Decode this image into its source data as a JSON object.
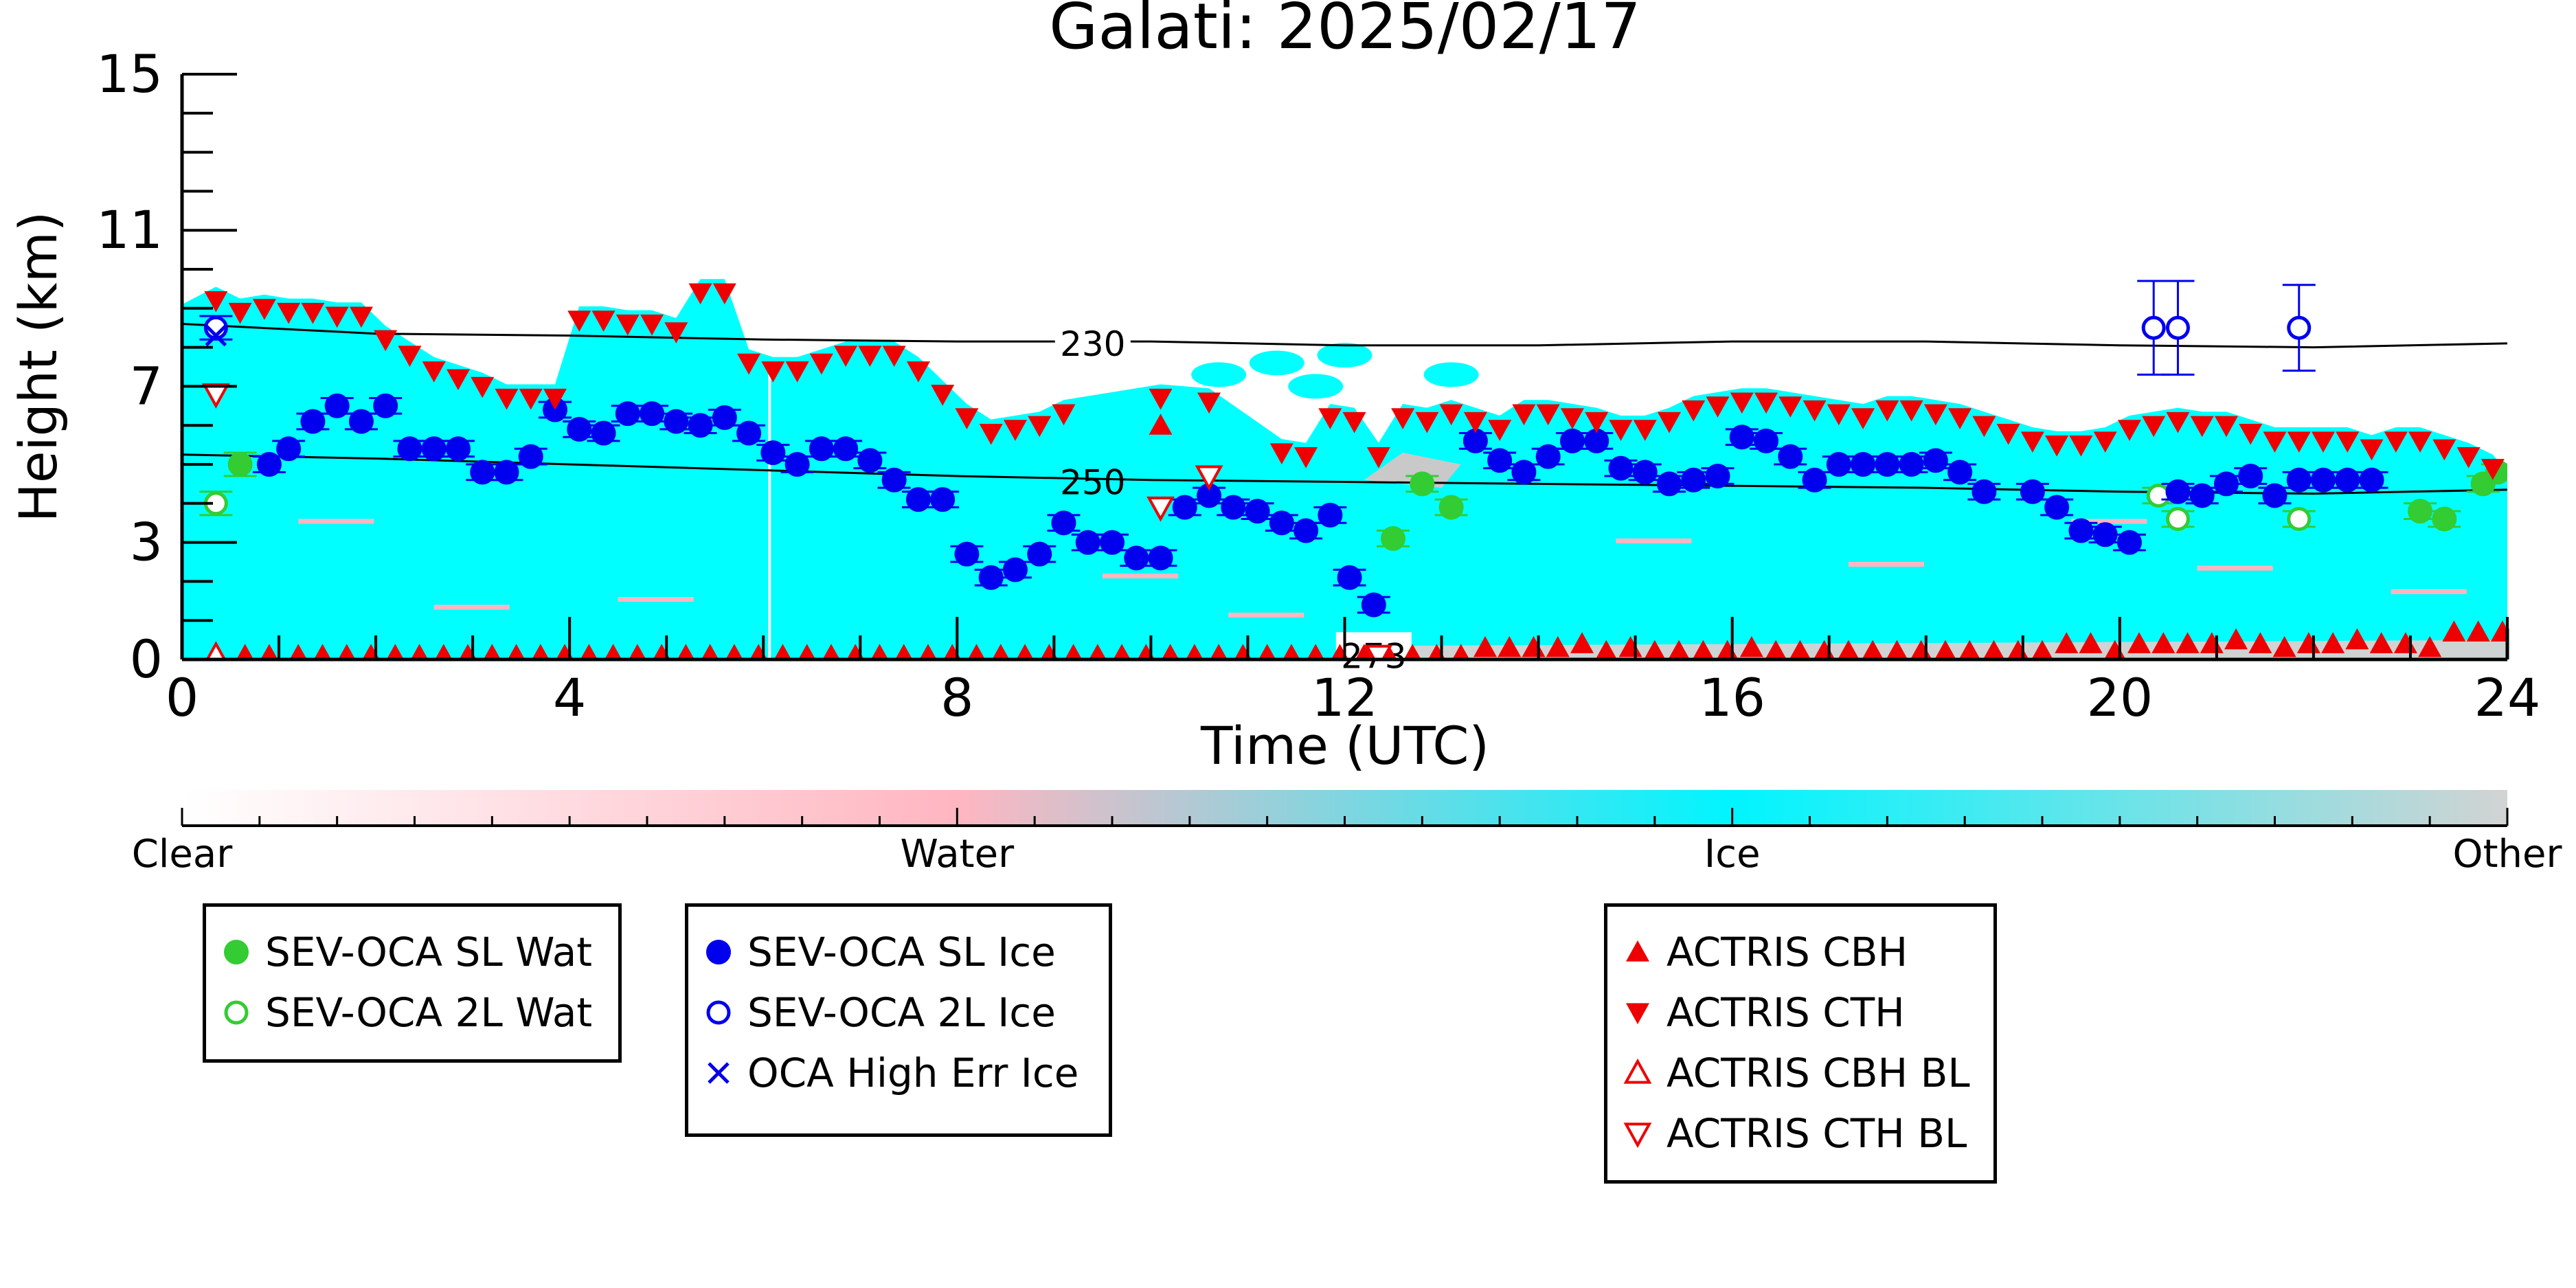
{
  "chart_data": {
    "type": "scatter",
    "title": "Galati: 2025/02/17",
    "xlabel": "Time (UTC)",
    "ylabel": "Height (km)",
    "xlim": [
      0,
      24
    ],
    "ylim": [
      0,
      15
    ],
    "xticks": [
      0,
      4,
      8,
      12,
      16,
      20,
      24
    ],
    "yticks": [
      0,
      3,
      7,
      11,
      15
    ],
    "isotherms": [
      {
        "label": "230",
        "x": [
          0,
          2,
          4,
          6,
          8,
          10,
          12,
          14,
          16,
          18,
          20,
          22,
          24
        ],
        "y": [
          8.6,
          8.35,
          8.3,
          8.2,
          8.15,
          8.15,
          8.05,
          8.05,
          8.15,
          8.15,
          8.05,
          8.0,
          8.1
        ]
      },
      {
        "label": "250",
        "x": [
          0,
          2,
          4,
          6,
          8,
          10,
          12,
          14,
          16,
          18,
          20,
          22,
          24
        ],
        "y": [
          5.25,
          5.15,
          5.0,
          4.85,
          4.7,
          4.6,
          4.55,
          4.5,
          4.45,
          4.4,
          4.3,
          4.25,
          4.35
        ]
      },
      {
        "label": "273",
        "x": [
          12.0,
          12.6
        ],
        "y": [
          0.1,
          0.1
        ]
      }
    ],
    "colorbar": {
      "labels": [
        "Clear",
        "Water",
        "Ice",
        "Other"
      ],
      "colors": [
        "#ffffff",
        "#ffb6c1",
        "#00ffff",
        "#d3d3d3"
      ]
    },
    "series": [
      {
        "name": "SEV-OCA SL Wat",
        "color": "#33cc33",
        "marker": "filled-circle",
        "x": [
          0.6,
          12.5,
          12.8,
          13.1,
          23.1,
          23.35,
          23.75,
          23.9
        ],
        "y": [
          5.0,
          3.1,
          4.5,
          3.9,
          3.8,
          3.6,
          4.5,
          4.8
        ],
        "err": [
          0.3,
          0.2,
          0.2,
          0.2,
          0.2,
          0.2,
          0.2,
          0.2
        ]
      },
      {
        "name": "SEV-OCA 2L Wat",
        "color": "#33cc33",
        "marker": "open-circle",
        "x": [
          0.35,
          20.4,
          20.6,
          21.85
        ],
        "y": [
          4.0,
          4.2,
          3.6,
          3.6
        ],
        "err": [
          0.3,
          0.2,
          0.2,
          0.2
        ]
      },
      {
        "name": "SEV-OCA SL Ice",
        "color": "#0000ee",
        "marker": "filled-circle",
        "x": [
          0.9,
          1.1,
          1.35,
          1.6,
          1.85,
          2.1,
          2.35,
          2.6,
          2.85,
          3.1,
          3.35,
          3.6,
          3.85,
          4.1,
          4.35,
          4.6,
          4.85,
          5.1,
          5.35,
          5.6,
          5.85,
          6.1,
          6.35,
          6.6,
          6.85,
          7.1,
          7.35,
          7.6,
          7.85,
          8.1,
          8.35,
          8.6,
          8.85,
          9.1,
          9.35,
          9.6,
          9.85,
          10.1,
          10.35,
          10.6,
          10.85,
          11.1,
          11.35,
          11.6,
          11.85,
          12.05,
          12.3,
          13.35,
          13.6,
          13.85,
          14.1,
          14.35,
          14.6,
          14.85,
          15.1,
          15.35,
          15.6,
          15.85,
          16.1,
          16.35,
          16.6,
          16.85,
          17.1,
          17.35,
          17.6,
          17.85,
          18.1,
          18.35,
          18.6,
          19.1,
          19.35,
          19.6,
          19.85,
          20.1,
          20.6,
          20.85,
          21.1,
          21.35,
          21.6,
          21.85,
          22.1,
          22.35,
          22.6
        ],
        "y": [
          5.0,
          5.4,
          6.1,
          6.5,
          6.1,
          6.5,
          5.4,
          5.4,
          5.4,
          4.8,
          4.8,
          5.2,
          6.4,
          5.9,
          5.8,
          6.3,
          6.3,
          6.1,
          6.0,
          6.2,
          5.8,
          5.3,
          5.0,
          5.4,
          5.4,
          5.1,
          4.6,
          4.1,
          4.1,
          2.7,
          2.1,
          2.3,
          2.7,
          3.5,
          3.0,
          3.0,
          2.6,
          2.6,
          3.9,
          4.2,
          3.9,
          3.8,
          3.5,
          3.3,
          3.7,
          2.1,
          1.4,
          5.6,
          5.1,
          4.8,
          5.2,
          5.6,
          5.6,
          4.9,
          4.8,
          4.5,
          4.6,
          4.7,
          5.7,
          5.6,
          5.2,
          4.6,
          5.0,
          5.0,
          5.0,
          5.0,
          5.1,
          4.8,
          4.3,
          4.3,
          3.9,
          3.3,
          3.2,
          3.0,
          4.3,
          4.2,
          4.5,
          4.7,
          4.2,
          4.6,
          4.6,
          4.6,
          4.6
        ],
        "err": [
          0.2,
          0.2,
          0.2,
          0.2,
          0.2,
          0.2,
          0.2,
          0.2,
          0.2,
          0.2,
          0.2,
          0.2,
          0.2,
          0.2,
          0.2,
          0.2,
          0.2,
          0.2,
          0.2,
          0.2,
          0.2,
          0.2,
          0.2,
          0.2,
          0.2,
          0.2,
          0.2,
          0.2,
          0.2,
          0.2,
          0.2,
          0.2,
          0.2,
          0.2,
          0.2,
          0.2,
          0.2,
          0.2,
          0.2,
          0.2,
          0.2,
          0.2,
          0.2,
          0.2,
          0.2,
          0.2,
          0.2,
          0.2,
          0.2,
          0.2,
          0.2,
          0.2,
          0.2,
          0.2,
          0.2,
          0.2,
          0.2,
          0.2,
          0.2,
          0.2,
          0.2,
          0.2,
          0.2,
          0.2,
          0.2,
          0.2,
          0.2,
          0.2,
          0.2,
          0.2,
          0.2,
          0.2,
          0.2,
          0.2,
          0.2,
          0.2,
          0.2,
          0.2,
          0.2,
          0.2,
          0.2,
          0.2,
          0.2
        ]
      },
      {
        "name": "SEV-OCA 2L Ice",
        "color": "#0000ee",
        "marker": "open-circle",
        "x": [
          0.35,
          20.35,
          20.6,
          21.85
        ],
        "y": [
          8.5,
          8.5,
          8.5,
          8.5
        ],
        "err": [
          0.3,
          1.2,
          1.2,
          1.1
        ]
      },
      {
        "name": "OCA High Err Ice",
        "color": "#0000ee",
        "marker": "x",
        "x": [
          0.35
        ],
        "y": [
          8.3
        ]
      },
      {
        "name": "ACTRIS CBH",
        "color": "#ee0000",
        "marker": "triangle-up",
        "x": [
          0.35,
          0.65,
          0.9,
          1.2,
          1.45,
          1.7,
          1.95,
          2.2,
          2.45,
          2.7,
          2.95,
          3.2,
          3.45,
          3.7,
          3.95,
          4.2,
          4.45,
          4.7,
          4.95,
          5.2,
          5.45,
          5.7,
          5.95,
          6.2,
          6.45,
          6.7,
          6.95,
          7.2,
          7.45,
          7.7,
          7.95,
          8.2,
          8.45,
          8.7,
          8.95,
          9.2,
          9.45,
          9.7,
          9.95,
          10.2,
          10.45,
          10.7,
          10.95,
          11.2,
          11.45,
          11.7,
          11.95,
          12.2,
          12.45,
          12.7,
          12.95,
          13.2,
          13.45,
          13.7,
          13.95,
          14.2,
          14.45,
          14.7,
          14.95,
          15.2,
          15.45,
          15.7,
          15.95,
          16.2,
          16.45,
          16.7,
          16.95,
          17.2,
          17.45,
          17.7,
          17.95,
          18.2,
          18.45,
          18.7,
          18.95,
          19.2,
          19.45,
          19.7,
          19.95,
          20.2,
          20.45,
          20.7,
          20.95,
          21.2,
          21.45,
          21.7,
          21.95,
          22.2,
          22.45,
          22.7,
          22.95,
          23.2,
          23.45,
          23.7,
          23.95,
          10.1
        ],
        "y": [
          0.1,
          0.1,
          0.1,
          0.1,
          0.1,
          0.1,
          0.1,
          0.1,
          0.1,
          0.1,
          0.1,
          0.1,
          0.1,
          0.1,
          0.1,
          0.1,
          0.1,
          0.1,
          0.1,
          0.1,
          0.1,
          0.1,
          0.1,
          0.1,
          0.1,
          0.1,
          0.1,
          0.1,
          0.1,
          0.1,
          0.1,
          0.1,
          0.1,
          0.1,
          0.1,
          0.1,
          0.1,
          0.1,
          0.1,
          0.1,
          0.1,
          0.1,
          0.1,
          0.1,
          0.1,
          0.1,
          0.1,
          0.1,
          0.1,
          0.1,
          0.1,
          0.1,
          0.3,
          0.3,
          0.3,
          0.3,
          0.4,
          0.2,
          0.3,
          0.2,
          0.2,
          0.2,
          0.2,
          0.3,
          0.2,
          0.2,
          0.2,
          0.2,
          0.2,
          0.2,
          0.2,
          0.2,
          0.2,
          0.2,
          0.2,
          0.2,
          0.4,
          0.4,
          0.2,
          0.4,
          0.4,
          0.4,
          0.4,
          0.5,
          0.4,
          0.3,
          0.4,
          0.4,
          0.5,
          0.4,
          0.4,
          0.3,
          0.7,
          0.7,
          0.7,
          6.0
        ]
      },
      {
        "name": "ACTRIS CTH",
        "color": "#ee0000",
        "marker": "triangle-down",
        "x": [
          0.35,
          0.6,
          0.85,
          1.1,
          1.35,
          1.6,
          1.85,
          2.1,
          2.35,
          2.6,
          2.85,
          3.1,
          3.35,
          3.6,
          3.85,
          4.1,
          4.35,
          4.6,
          4.85,
          5.1,
          5.35,
          5.6,
          5.85,
          6.1,
          6.35,
          6.6,
          6.85,
          7.1,
          7.35,
          7.6,
          7.85,
          8.1,
          8.35,
          8.6,
          8.85,
          9.1,
          10.1,
          10.6,
          11.35,
          11.6,
          11.85,
          12.1,
          12.35,
          12.6,
          12.85,
          13.1,
          13.35,
          13.6,
          13.85,
          14.1,
          14.35,
          14.6,
          14.85,
          15.1,
          15.35,
          15.6,
          15.85,
          16.1,
          16.35,
          16.6,
          16.85,
          17.1,
          17.35,
          17.6,
          17.85,
          18.1,
          18.35,
          18.6,
          18.85,
          19.1,
          19.35,
          19.6,
          19.85,
          20.1,
          20.35,
          20.6,
          20.85,
          21.1,
          21.35,
          21.6,
          21.85,
          22.1,
          22.35,
          22.6,
          22.85,
          23.1,
          23.35,
          23.6,
          23.85
        ],
        "y": [
          9.2,
          8.9,
          9.0,
          8.9,
          8.9,
          8.8,
          8.8,
          8.2,
          7.8,
          7.4,
          7.2,
          7.0,
          6.7,
          6.7,
          6.7,
          8.7,
          8.7,
          8.6,
          8.6,
          8.4,
          9.4,
          9.4,
          7.6,
          7.4,
          7.4,
          7.6,
          7.8,
          7.8,
          7.8,
          7.4,
          6.8,
          6.2,
          5.8,
          5.9,
          6.0,
          6.3,
          6.7,
          6.6,
          5.3,
          5.2,
          6.2,
          6.1,
          5.2,
          6.2,
          6.1,
          6.3,
          6.1,
          5.9,
          6.3,
          6.3,
          6.2,
          6.1,
          5.9,
          5.9,
          6.1,
          6.4,
          6.5,
          6.6,
          6.6,
          6.5,
          6.4,
          6.3,
          6.2,
          6.4,
          6.4,
          6.3,
          6.2,
          6.0,
          5.8,
          5.6,
          5.5,
          5.5,
          5.6,
          5.9,
          6.0,
          6.1,
          6.0,
          6.0,
          5.8,
          5.6,
          5.6,
          5.6,
          5.6,
          5.4,
          5.6,
          5.6,
          5.4,
          5.2,
          4.9
        ]
      },
      {
        "name": "ACTRIS CBH BL",
        "color": "#ee0000",
        "marker": "open-triangle-up",
        "x": [
          0.35
        ],
        "y": [
          0.1
        ]
      },
      {
        "name": "ACTRIS CTH BL",
        "color": "#ee0000",
        "marker": "open-triangle-down",
        "x": [
          0.35,
          10.1,
          10.6,
          12.35
        ],
        "y": [
          6.8,
          3.9,
          4.7,
          0.1
        ]
      }
    ]
  },
  "legends": [
    {
      "items": [
        {
          "label": "SEV-OCA SL Wat",
          "color": "#33cc33",
          "marker": "filled-circle"
        },
        {
          "label": "SEV-OCA 2L Wat",
          "color": "#33cc33",
          "marker": "open-circle"
        }
      ]
    },
    {
      "items": [
        {
          "label": "SEV-OCA SL Ice",
          "color": "#0000ee",
          "marker": "filled-circle"
        },
        {
          "label": "SEV-OCA 2L Ice",
          "color": "#0000ee",
          "marker": "open-circle"
        },
        {
          "label": "OCA High Err Ice",
          "color": "#0000ee",
          "marker": "x"
        }
      ]
    },
    {
      "items": [
        {
          "label": "ACTRIS CBH",
          "color": "#ee0000",
          "marker": "triangle-up"
        },
        {
          "label": "ACTRIS CTH",
          "color": "#ee0000",
          "marker": "triangle-down"
        },
        {
          "label": "ACTRIS CBH BL",
          "color": "#ee0000",
          "marker": "open-triangle-up"
        },
        {
          "label": "ACTRIS CTH BL",
          "color": "#ee0000",
          "marker": "open-triangle-down"
        }
      ]
    }
  ]
}
